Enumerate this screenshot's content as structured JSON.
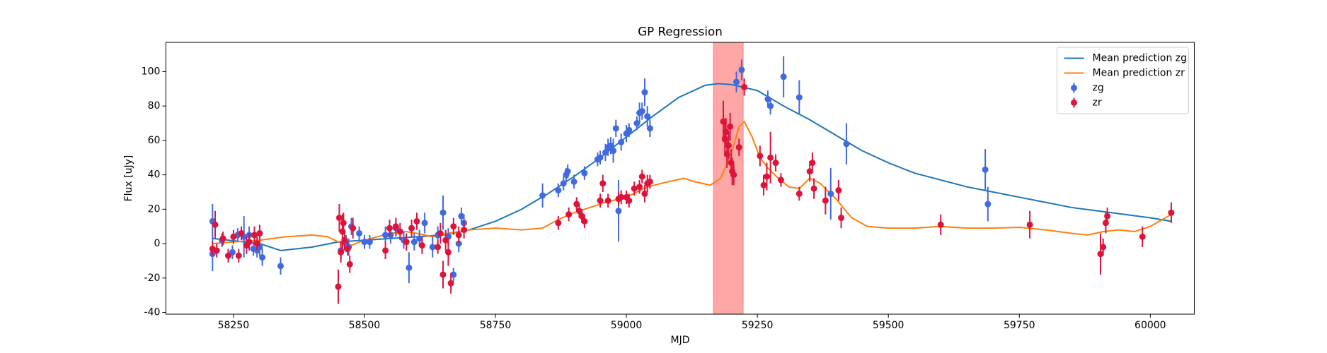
{
  "chart_data": {
    "type": "line",
    "title": "GP Regression",
    "xlabel": "MJD",
    "ylabel": "Flux [uJy]",
    "xlim": [
      58121,
      60084
    ],
    "ylim": [
      -41,
      117
    ],
    "xticks": [
      58250,
      58500,
      58750,
      59000,
      59250,
      59500,
      59750,
      60000
    ],
    "yticks": [
      -40,
      -20,
      0,
      20,
      40,
      60,
      80,
      100
    ],
    "legend": "upper right",
    "span": [
      59166,
      59223
    ],
    "span_color": "#ff0000",
    "series": [
      {
        "name": "Mean prediction zg",
        "type": "line",
        "color": "#1f77b4",
        "x": [
          58210,
          58300,
          58340,
          58400,
          58450,
          58500,
          58550,
          58600,
          58650,
          58700,
          58750,
          58800,
          58850,
          58900,
          58950,
          59000,
          59050,
          59100,
          59150,
          59175,
          59200,
          59250,
          59300,
          59350,
          59400,
          59450,
          59500,
          59550,
          59600,
          59650,
          59700,
          59750,
          59800,
          59850,
          59900,
          59950,
          60000,
          60040
        ],
        "values": [
          3,
          0,
          -4,
          -2,
          1,
          2,
          3,
          4,
          5,
          8,
          13,
          20,
          29,
          39,
          50,
          62,
          74,
          85,
          92,
          93,
          92.5,
          89,
          80,
          72,
          63,
          54,
          47,
          41,
          37,
          33,
          30,
          27,
          24,
          21,
          19,
          17,
          15,
          13
        ]
      },
      {
        "name": "Mean prediction zr",
        "type": "line",
        "color": "#ff7f0e",
        "x": [
          58210,
          58250,
          58300,
          58350,
          58400,
          58430,
          58450,
          58475,
          58500,
          58550,
          58580,
          58600,
          58630,
          58660,
          58700,
          58750,
          58800,
          58840,
          58870,
          58900,
          58930,
          58960,
          59000,
          59040,
          59080,
          59110,
          59130,
          59160,
          59180,
          59200,
          59215,
          59225,
          59240,
          59255,
          59270,
          59290,
          59310,
          59330,
          59350,
          59370,
          59400,
          59430,
          59460,
          59500,
          59550,
          59600,
          59650,
          59700,
          59750,
          59800,
          59850,
          59880,
          59910,
          59940,
          59970,
          60000,
          60040
        ],
        "values": [
          0,
          1,
          2,
          4,
          5,
          4,
          1,
          -1,
          2,
          6,
          7,
          6,
          4,
          6,
          8,
          9,
          8,
          9,
          14,
          18,
          21,
          24,
          27,
          33,
          36,
          38,
          36,
          34,
          38,
          52,
          68,
          71,
          62,
          50,
          44,
          38,
          33,
          32,
          38,
          35,
          26,
          15,
          10,
          9,
          9,
          10,
          9,
          9,
          9.5,
          8,
          6,
          5,
          7,
          8,
          7,
          10,
          17
        ]
      },
      {
        "name": "zg",
        "type": "errorbar",
        "color": "#4169e1",
        "x": [
          58210,
          58210,
          58228,
          58248,
          58258,
          58270,
          58280,
          58288,
          58295,
          58300,
          58305,
          58340,
          58455,
          58465,
          58470,
          58475,
          58490,
          58500,
          58510,
          58540,
          58550,
          58560,
          58575,
          58585,
          58595,
          58605,
          58615,
          58630,
          58640,
          58650,
          58660,
          58670,
          58680,
          58685,
          58690,
          58840,
          58870,
          58880,
          58885,
          58888,
          58900,
          58920,
          58945,
          58950,
          58960,
          58965,
          58970,
          58975,
          58980,
          58985,
          58990,
          59000,
          59005,
          59020,
          59025,
          59030,
          59035,
          59040,
          59045,
          59210,
          59220,
          59270,
          59275,
          59300,
          59330,
          59390,
          59420,
          59685,
          59690
        ],
        "values": [
          13,
          -6,
          2,
          -5,
          5,
          4,
          5,
          -3,
          -4,
          -2,
          -8,
          -13,
          -4,
          0,
          -2,
          10,
          6,
          1,
          1,
          5,
          5,
          9,
          2,
          -14,
          1,
          3,
          12,
          -2,
          5,
          18,
          4,
          -18,
          0,
          16,
          12,
          28,
          31,
          35,
          40,
          42,
          36,
          41,
          49,
          50,
          53,
          56,
          57,
          54,
          67,
          19,
          59,
          64,
          66,
          70,
          76,
          77,
          88,
          74,
          67,
          94,
          101,
          84,
          80,
          97,
          85,
          29,
          58,
          43,
          23
        ],
        "errors": [
          10,
          10,
          4,
          4,
          4,
          12,
          5,
          4,
          4,
          5,
          5,
          5,
          5,
          5,
          5,
          5,
          4,
          4,
          4,
          5,
          5,
          5,
          5,
          9,
          5,
          5,
          6,
          6,
          5,
          10,
          5,
          4,
          5,
          5,
          5,
          7,
          4,
          4,
          4,
          4,
          4,
          4,
          4,
          4,
          5,
          5,
          5,
          7,
          5,
          18,
          5,
          5,
          4,
          4,
          6,
          5,
          8,
          6,
          5,
          6,
          6,
          5,
          5,
          12,
          10,
          15,
          12,
          12,
          10
        ]
      },
      {
        "name": "zr",
        "type": "errorbar",
        "color": "#dc143c",
        "x": [
          58210,
          58215,
          58218,
          58230,
          58240,
          58250,
          58260,
          58265,
          58275,
          58280,
          58290,
          58295,
          58300,
          58450,
          58452,
          58455,
          58458,
          58460,
          58462,
          58468,
          58472,
          58478,
          58540,
          58548,
          58560,
          58568,
          58580,
          58590,
          58600,
          58610,
          58640,
          58645,
          58650,
          58655,
          58660,
          58665,
          58670,
          58680,
          58690,
          58870,
          58890,
          58905,
          58910,
          58915,
          58920,
          58950,
          58955,
          58965,
          58985,
          58990,
          59000,
          59005,
          59015,
          59025,
          59030,
          59035,
          59040,
          59045,
          59185,
          59188,
          59190,
          59192,
          59195,
          59198,
          59200,
          59202,
          59205,
          59215,
          59225,
          59255,
          59262,
          59268,
          59275,
          59285,
          59295,
          59330,
          59350,
          59355,
          59358,
          59380,
          59405,
          59410,
          59600,
          59770,
          59905,
          59910,
          59915,
          59918,
          59985,
          60040
        ],
        "values": [
          -3,
          11,
          -4,
          3,
          -7,
          4,
          -7,
          6,
          -1,
          1,
          5,
          0,
          6,
          -25,
          15,
          -5,
          7,
          12,
          2,
          -3,
          -12,
          9,
          -4,
          9,
          10,
          7,
          1,
          9,
          13,
          -1,
          -2,
          6,
          -18,
          2,
          -5,
          -23,
          10,
          5,
          8,
          12,
          17,
          23,
          19,
          16,
          13,
          25,
          35,
          25,
          26,
          27,
          27,
          25,
          32,
          33,
          39,
          29,
          35,
          36,
          71,
          61,
          65,
          52,
          57,
          68,
          47,
          42,
          40,
          56,
          91,
          51,
          34,
          39,
          50,
          47,
          37,
          29,
          42,
          47,
          32,
          25,
          31,
          15,
          11,
          11,
          -6,
          -2,
          12,
          16,
          4,
          18
        ],
        "errors": [
          4,
          8,
          4,
          4,
          4,
          4,
          4,
          4,
          5,
          5,
          5,
          4,
          5,
          10,
          8,
          6,
          10,
          6,
          6,
          4,
          5,
          6,
          5,
          5,
          5,
          5,
          5,
          5,
          5,
          5,
          4,
          6,
          8,
          6,
          8,
          6,
          5,
          5,
          5,
          4,
          4,
          4,
          4,
          4,
          4,
          4,
          5,
          4,
          4,
          4,
          4,
          4,
          4,
          4,
          4,
          5,
          5,
          4,
          12,
          10,
          8,
          8,
          8,
          8,
          8,
          8,
          6,
          5,
          5,
          6,
          6,
          8,
          15,
          5,
          4,
          4,
          6,
          6,
          6,
          8,
          6,
          6,
          6,
          8,
          12,
          5,
          6,
          5,
          6,
          6
        ]
      }
    ]
  }
}
